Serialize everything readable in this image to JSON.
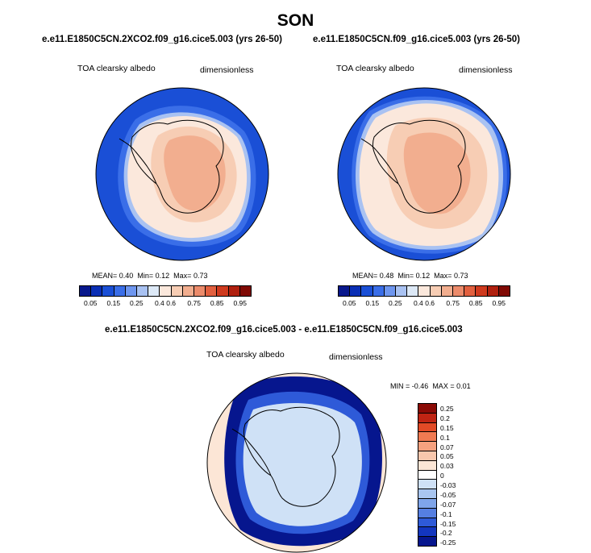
{
  "header": {
    "season": "SON"
  },
  "panels": [
    {
      "title": "e.e11.E1850C5CN.2XCO2.f09_g16.cice5.003 (yrs 26-50)",
      "variable": "TOA clearsky albedo",
      "units": "dimensionless",
      "stats": {
        "mean_label": "MEAN=",
        "mean": "0.40",
        "min_label": "Min=",
        "min": "0.12",
        "max_label": "Max=",
        "max": "0.73"
      }
    },
    {
      "title": "e.e11.E1850C5CN.f09_g16.cice5.003 (yrs 26-50)",
      "variable": "TOA clearsky albedo",
      "units": "dimensionless",
      "stats": {
        "mean_label": "MEAN=",
        "mean": "0.48",
        "min_label": "Min=",
        "min": "0.12",
        "max_label": "Max=",
        "max": "0.73"
      }
    }
  ],
  "diff_panel": {
    "title": "e.e11.E1850C5CN.2XCO2.f09_g16.cice5.003 - e.e11.E1850C5CN.f09_g16.cice5.003",
    "variable": "TOA clearsky albedo",
    "units": "dimensionless",
    "stats": {
      "min_label": "MIN =",
      "min": "-0.46",
      "max_label": "MAX =",
      "max": "0.01"
    }
  },
  "colorbar": {
    "colors": [
      "#08188c",
      "#0a2fb5",
      "#1a4fd6",
      "#3a6ee8",
      "#6e96ef",
      "#a9c2f2",
      "#dde9f7",
      "#fbe8dc",
      "#f7cdb4",
      "#f2ae8f",
      "#ec8b6b",
      "#e2603f",
      "#cf3a1e",
      "#b0200f",
      "#800a05"
    ],
    "ticks": [
      "0.05",
      "0.15",
      "0.25",
      "0.4",
      "0.6",
      "0.75",
      "0.85",
      "0.95"
    ]
  },
  "diff_colorbar": {
    "colors": [
      "#8a0a05",
      "#bf2413",
      "#e24a26",
      "#f07a52",
      "#f5a17f",
      "#f8c7ad",
      "#fce6d6",
      "#ffffff",
      "#cfe1f6",
      "#a9c6f0",
      "#7fa5ea",
      "#557fe2",
      "#2e5ad8",
      "#1336bf",
      "#06168e"
    ],
    "ticks": [
      "0.25",
      "0.2",
      "0.15",
      "0.1",
      "0.07",
      "0.05",
      "0.03",
      "0",
      "-0.03",
      "-0.05",
      "-0.07",
      "-0.1",
      "-0.15",
      "-0.2",
      "-0.25"
    ]
  }
}
